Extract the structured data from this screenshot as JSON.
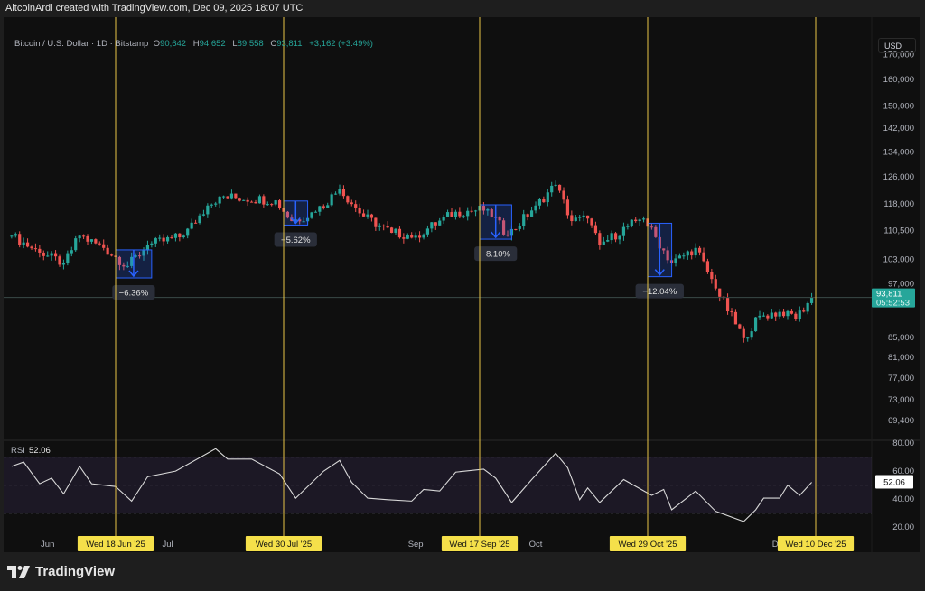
{
  "header": {
    "credit": "AltcoinArdi created with TradingView.com, Dec 09, 2025 18:07 UTC"
  },
  "legend": {
    "symbol": "Bitcoin / U.S. Dollar · 1D · Bitstamp",
    "o_label": "O",
    "o": "90,642",
    "h_label": "H",
    "h": "94,652",
    "l_label": "L",
    "l": "89,558",
    "c_label": "C",
    "c": "93,811",
    "change": "+3,162 (+3.49%)"
  },
  "currency": "USD",
  "footer": {
    "brand": "TradingView"
  },
  "colors": {
    "up": "#26a69a",
    "down": "#ef5350",
    "marker_line": "#e8c547",
    "marker_label_bg": "#f5e04a",
    "measure": "#2962ff",
    "rsi_line": "#d9d9d9",
    "rsi_band": "#7e57c2"
  },
  "chart_data": {
    "type": "candlestick",
    "title": "Bitcoin / U.S. Dollar · 1D · Bitstamp",
    "xlim": [
      "2025-05-21",
      "2025-12-24"
    ],
    "ylim": [
      66100,
      186000
    ],
    "y_scale": "log",
    "y_ticks": [
      {
        "v": 170000,
        "label": "170,000"
      },
      {
        "v": 160000,
        "label": "160,000"
      },
      {
        "v": 150000,
        "label": "150,000"
      },
      {
        "v": 142000,
        "label": "142,000"
      },
      {
        "v": 134000,
        "label": "134,000"
      },
      {
        "v": 126000,
        "label": "126,000"
      },
      {
        "v": 118000,
        "label": "118,000"
      },
      {
        "v": 110500,
        "label": "110,500"
      },
      {
        "v": 103000,
        "label": "103,000"
      },
      {
        "v": 97000,
        "label": "97,000"
      },
      {
        "v": 85000,
        "label": "85,000"
      },
      {
        "v": 81000,
        "label": "81,000"
      },
      {
        "v": 77000,
        "label": "77,000"
      },
      {
        "v": 73000,
        "label": "73,000"
      },
      {
        "v": 69400,
        "label": "69,400"
      }
    ],
    "x_ticks": [
      {
        "date": "2025-06-01",
        "label": "Jun"
      },
      {
        "date": "2025-07-01",
        "label": "Jul"
      },
      {
        "date": "2025-09-01",
        "label": "Sep"
      },
      {
        "date": "2025-10-01",
        "label": "Oct"
      },
      {
        "date": "2025-12-01",
        "label": "Dec"
      }
    ],
    "close_path": [
      [
        "2025-05-23",
        109100
      ],
      [
        "2025-05-30",
        104700
      ],
      [
        "2025-06-05",
        102000
      ],
      [
        "2025-06-09",
        109100
      ],
      [
        "2025-06-15",
        105900
      ],
      [
        "2025-06-21",
        101300
      ],
      [
        "2025-06-26",
        106600
      ],
      [
        "2025-07-05",
        109100
      ],
      [
        "2025-07-11",
        117500
      ],
      [
        "2025-07-14",
        120100
      ],
      [
        "2025-07-28",
        119000
      ],
      [
        "2025-08-01",
        113100
      ],
      [
        "2025-08-07",
        115700
      ],
      [
        "2025-08-13",
        122300
      ],
      [
        "2025-08-19",
        114400
      ],
      [
        "2025-08-26",
        109900
      ],
      [
        "2025-09-01",
        109100
      ],
      [
        "2025-09-11",
        115700
      ],
      [
        "2025-09-19",
        116400
      ],
      [
        "2025-09-24",
        109100
      ],
      [
        "2025-10-01",
        117500
      ],
      [
        "2025-10-06",
        123600
      ],
      [
        "2025-10-10",
        113100
      ],
      [
        "2025-10-14",
        113800
      ],
      [
        "2025-10-17",
        106600
      ],
      [
        "2025-10-26",
        113100
      ],
      [
        "2025-10-28",
        113800
      ],
      [
        "2025-11-04",
        102000
      ],
      [
        "2025-11-10",
        105900
      ],
      [
        "2025-11-15",
        95900
      ],
      [
        "2025-11-22",
        84900
      ],
      [
        "2025-11-26",
        89700
      ],
      [
        "2025-12-03",
        90700
      ],
      [
        "2025-12-05",
        89000
      ],
      [
        "2025-12-09",
        93811
      ]
    ],
    "last_price": {
      "value": 93811,
      "label": "93,811",
      "countdown": "05:52:53"
    },
    "measures": [
      {
        "from": "2025-06-18",
        "to": "2025-06-27",
        "top": 105400,
        "bottom": 98400,
        "label": "−6.36%"
      },
      {
        "from": "2025-07-30",
        "to": "2025-08-05",
        "top": 118800,
        "bottom": 112000,
        "label": "−5.62%"
      },
      {
        "from": "2025-09-17",
        "to": "2025-09-25",
        "top": 117700,
        "bottom": 108200,
        "label": "−8.10%"
      },
      {
        "from": "2025-10-29",
        "to": "2025-11-04",
        "top": 112500,
        "bottom": 98700,
        "label": "−12.04%"
      }
    ],
    "markers": [
      {
        "date": "2025-06-18",
        "label": "Wed 18 Jun '25"
      },
      {
        "date": "2025-07-30",
        "label": "Wed 30 Jul '25"
      },
      {
        "date": "2025-09-17",
        "label": "Wed 17 Sep '25"
      },
      {
        "date": "2025-10-29",
        "label": "Wed 29 Oct '25"
      },
      {
        "date": "2025-12-10",
        "label": "Wed 10 Dec '25"
      }
    ],
    "rsi": {
      "label": "RSI",
      "value_label": "52.06",
      "ylim": [
        15,
        82
      ],
      "y_ticks": [
        {
          "v": 80,
          "label": "80.00"
        },
        {
          "v": 60,
          "label": "60.00"
        },
        {
          "v": 40,
          "label": "40.00"
        },
        {
          "v": 20,
          "label": "20.00"
        }
      ],
      "bands": [
        30,
        50,
        70
      ],
      "values": [
        [
          "2025-05-23",
          63.4
        ],
        [
          "2025-05-26",
          66.5
        ],
        [
          "2025-05-30",
          51
        ],
        [
          "2025-06-02",
          55
        ],
        [
          "2025-06-05",
          43.8
        ],
        [
          "2025-06-09",
          63.4
        ],
        [
          "2025-06-12",
          51
        ],
        [
          "2025-06-18",
          49
        ],
        [
          "2025-06-22",
          38.6
        ],
        [
          "2025-06-26",
          56
        ],
        [
          "2025-07-03",
          60
        ],
        [
          "2025-07-13",
          76
        ],
        [
          "2025-07-16",
          68.6
        ],
        [
          "2025-07-22",
          68.6
        ],
        [
          "2025-07-29",
          58
        ],
        [
          "2025-08-02",
          40.7
        ],
        [
          "2025-08-09",
          60
        ],
        [
          "2025-08-13",
          67.6
        ],
        [
          "2025-08-16",
          52
        ],
        [
          "2025-08-20",
          40.7
        ],
        [
          "2025-08-25",
          39.6
        ],
        [
          "2025-08-31",
          38.6
        ],
        [
          "2025-09-03",
          46.9
        ],
        [
          "2025-09-07",
          45.8
        ],
        [
          "2025-09-11",
          59.3
        ],
        [
          "2025-09-18",
          61.4
        ],
        [
          "2025-09-21",
          55
        ],
        [
          "2025-09-25",
          37.6
        ],
        [
          "2025-09-30",
          54
        ],
        [
          "2025-10-06",
          72.8
        ],
        [
          "2025-10-09",
          62.4
        ],
        [
          "2025-10-12",
          39.6
        ],
        [
          "2025-10-14",
          48
        ],
        [
          "2025-10-17",
          37.6
        ],
        [
          "2025-10-23",
          54
        ],
        [
          "2025-10-30",
          42.7
        ],
        [
          "2025-11-02",
          46.9
        ],
        [
          "2025-11-04",
          32.4
        ],
        [
          "2025-11-10",
          45.8
        ],
        [
          "2025-11-15",
          31.3
        ],
        [
          "2025-11-22",
          24
        ],
        [
          "2025-11-25",
          32.4
        ],
        [
          "2025-11-27",
          40.7
        ],
        [
          "2025-12-01",
          40.7
        ],
        [
          "2025-12-03",
          50
        ],
        [
          "2025-12-06",
          42.7
        ],
        [
          "2025-12-09",
          52.06
        ]
      ]
    }
  }
}
